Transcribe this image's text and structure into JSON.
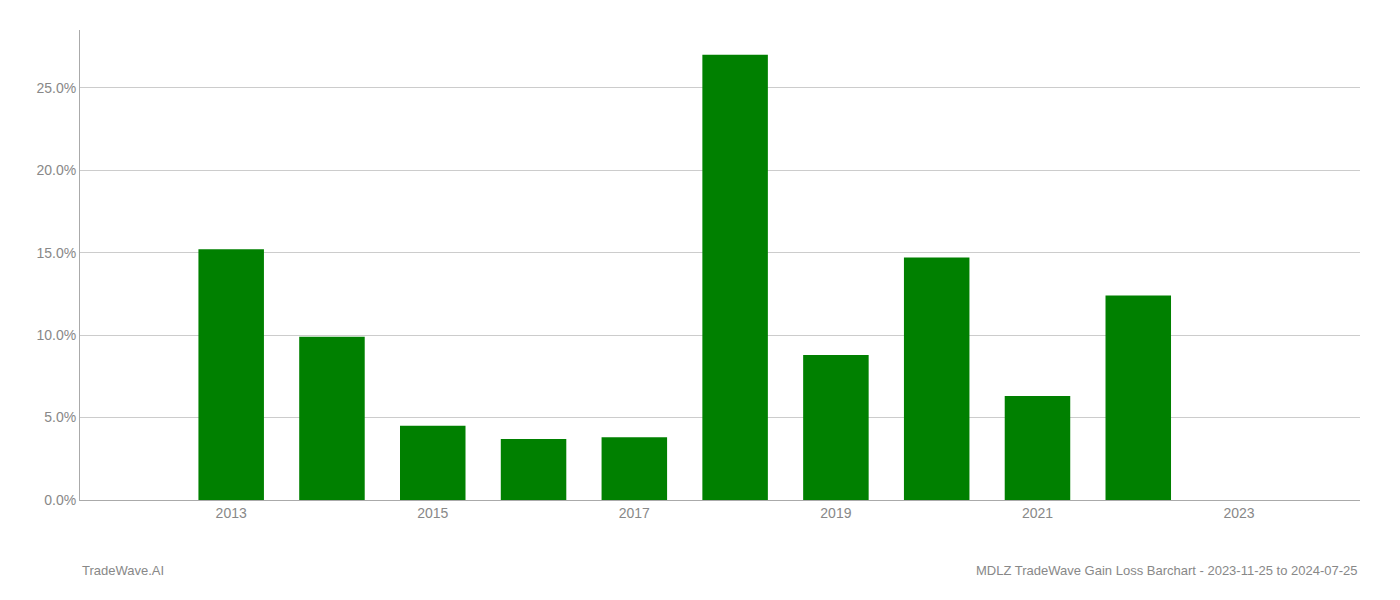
{
  "chart_data": {
    "type": "bar",
    "x": [
      2013,
      2014,
      2015,
      2016,
      2017,
      2018,
      2019,
      2020,
      2021,
      2022
    ],
    "values": [
      0.152,
      0.099,
      0.045,
      0.037,
      0.038,
      0.27,
      0.088,
      0.147,
      0.063,
      0.124
    ],
    "color": "#008000",
    "xlim": [
      2011.5,
      2024.2
    ],
    "xticks": [
      2013,
      2015,
      2017,
      2019,
      2021,
      2023
    ],
    "ylim": [
      0,
      0.285
    ],
    "yticks": [
      {
        "value": 0.0,
        "label": "0.0%"
      },
      {
        "value": 0.05,
        "label": "5.0%"
      },
      {
        "value": 0.1,
        "label": "10.0%"
      },
      {
        "value": 0.15,
        "label": "15.0%"
      },
      {
        "value": 0.2,
        "label": "20.0%"
      },
      {
        "value": 0.25,
        "label": "25.0%"
      }
    ],
    "grid": true,
    "annotations": [
      "TradeWave.AI",
      "MDLZ TradeWave Gain Loss Barchart - 2023-11-25 to 2024-07-25"
    ]
  }
}
